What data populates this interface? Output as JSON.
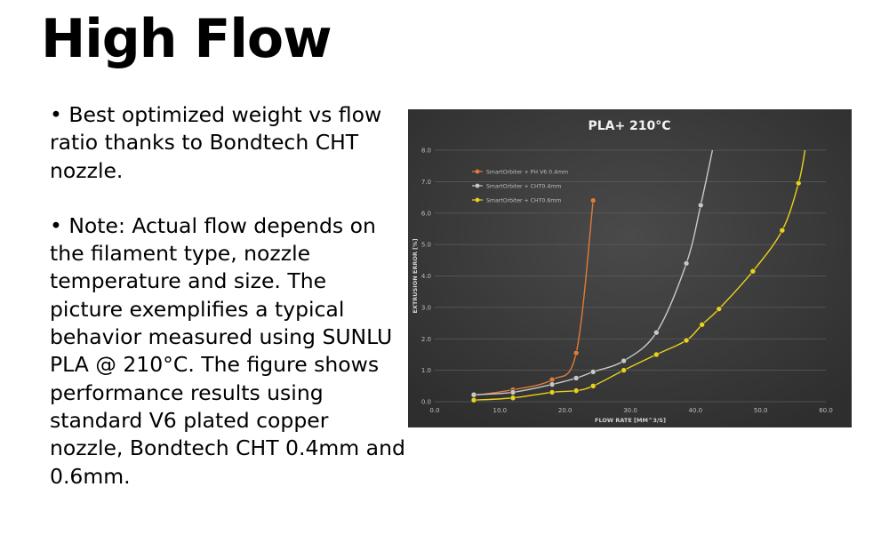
{
  "page_title": "High Flow",
  "bullets": [
    "• Best optimized weight vs flow ratio thanks to Bondtech CHT nozzle.",
    "• Note: Actual flow depends on the filament type, nozzle temperature and size. The picture exemplifies a typical behavior measured using SUNLU PLA @ 210°C. The figure shows performance results using standard V6 plated copper nozzle, Bondtech CHT 0.4mm and 0.6mm."
  ],
  "chart_data": {
    "type": "line",
    "title": "PLA+ 210°C",
    "xlabel": "FLOW RATE [MM^3/S]",
    "ylabel": "EXTRUSION ERROR [%]",
    "xlim": [
      0,
      60
    ],
    "ylim": [
      0,
      8
    ],
    "x_ticks": [
      "0.0",
      "10.0",
      "20.0",
      "30.0",
      "40.0",
      "50.0",
      "60.0"
    ],
    "y_ticks": [
      "0.0",
      "1.0",
      "2.0",
      "3.0",
      "4.0",
      "5.0",
      "6.0",
      "7.0",
      "8.0"
    ],
    "grid": true,
    "legend_position": "top-left",
    "series": [
      {
        "name": "SmartOrbiter + PH V6 0.4mm",
        "color": "#e07b39",
        "points": [
          [
            6.0,
            0.2
          ],
          [
            12.0,
            0.38
          ],
          [
            18.0,
            0.7
          ],
          [
            21.7,
            1.55
          ],
          [
            24.3,
            6.4
          ]
        ],
        "tail": [
          24.3,
          6.4
        ]
      },
      {
        "name": "SmartOrbiter + CHT0.4mm",
        "color": "#c8c8c8",
        "points": [
          [
            6.0,
            0.22
          ],
          [
            12.0,
            0.3
          ],
          [
            18.0,
            0.55
          ],
          [
            21.7,
            0.75
          ],
          [
            24.3,
            0.95
          ],
          [
            29.0,
            1.3
          ],
          [
            34.0,
            2.2
          ],
          [
            38.6,
            4.4
          ],
          [
            40.8,
            6.25
          ]
        ],
        "tail": [
          42.6,
          8.0
        ]
      },
      {
        "name": "SmartOrbiter + CHT0.6mm",
        "color": "#e8d21d",
        "points": [
          [
            6.0,
            0.05
          ],
          [
            12.0,
            0.12
          ],
          [
            18.0,
            0.3
          ],
          [
            21.7,
            0.35
          ],
          [
            24.3,
            0.5
          ],
          [
            29.0,
            1.0
          ],
          [
            34.0,
            1.5
          ],
          [
            38.6,
            1.95
          ],
          [
            41.0,
            2.45
          ],
          [
            43.6,
            2.95
          ],
          [
            48.8,
            4.15
          ],
          [
            53.3,
            5.45
          ],
          [
            55.8,
            6.95
          ]
        ],
        "tail": [
          56.8,
          8.0
        ]
      }
    ]
  }
}
